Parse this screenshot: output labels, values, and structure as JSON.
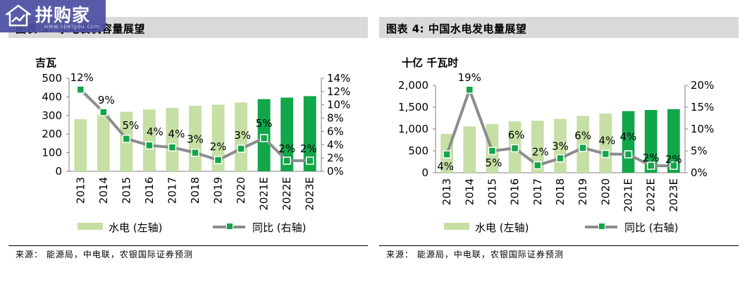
{
  "left": {
    "title": "图表 3: 水电装机容量展望",
    "unit": "吉瓦",
    "legend_bar": "水电 (左轴)",
    "legend_line": "同比 (右轴)",
    "source": "来源：  能源局，中电联，农银国际证券预测"
  },
  "right": {
    "title": "图表 4: 中国水电发电量展望",
    "unit": "十亿 千瓦时",
    "legend_bar": "水电 (左轴)",
    "legend_line": "同比 (右轴)",
    "source": "来源：  能源局，中电联，农银国际证券预测"
  },
  "watermark": {
    "text": "拼购家",
    "sub": "www.spelgou.com"
  },
  "colors": {
    "bar_actual": "#c6dfa5",
    "bar_forecast": "#12a64a",
    "line": "#8c8c8c",
    "marker": "#12a64a"
  },
  "chart_data": [
    {
      "type": "bar",
      "categories": [
        "2013",
        "2014",
        "2015",
        "2016",
        "2017",
        "2018",
        "2019",
        "2020",
        "2021E",
        "2022E",
        "2023E"
      ],
      "series": [
        {
          "name": "水电 (左轴)",
          "axis": "left",
          "values": [
            280,
            305,
            320,
            332,
            341,
            352,
            358,
            370,
            388,
            396,
            404
          ]
        },
        {
          "name": "同比 (右轴)",
          "axis": "right",
          "type": "line",
          "values": [
            12.3,
            8.9,
            4.9,
            3.9,
            3.6,
            2.8,
            1.7,
            3.4,
            5.0,
            1.6,
            1.6
          ],
          "labels": [
            "12%",
            "9%",
            "5%",
            "4%",
            "4%",
            "3%",
            "2%",
            "3%",
            "5%",
            "2%",
            "2%"
          ]
        }
      ],
      "forecast_from_index": 8,
      "ylim_left": [
        0,
        500
      ],
      "yticks_left": [
        "0",
        "100",
        "200",
        "300",
        "400",
        "500"
      ],
      "ylim_right": [
        0,
        14
      ],
      "yticks_right": [
        "0%",
        "2%",
        "4%",
        "6%",
        "8%",
        "10%",
        "12%",
        "14%"
      ]
    },
    {
      "type": "bar",
      "categories": [
        "2013",
        "2014",
        "2015",
        "2016",
        "2017",
        "2018",
        "2019",
        "2020",
        "2021E",
        "2022E",
        "2023E"
      ],
      "series": [
        {
          "name": "水电 (左轴)",
          "axis": "left",
          "values": [
            890,
            1060,
            1112,
            1175,
            1190,
            1232,
            1300,
            1355,
            1410,
            1435,
            1455
          ]
        },
        {
          "name": "同比 (右轴)",
          "axis": "right",
          "type": "line",
          "values": [
            4.2,
            19.0,
            5.0,
            5.6,
            1.7,
            3.3,
            5.7,
            4.3,
            4.2,
            1.6,
            1.6
          ],
          "labels": [
            "4%",
            "19%",
            "5%",
            "6%",
            "2%",
            "3%",
            "6%",
            "4%",
            "4%",
            "2%",
            "2%"
          ]
        }
      ],
      "forecast_from_index": 8,
      "ylim_left": [
        0,
        2000
      ],
      "yticks_left": [
        "0",
        "500",
        "1,000",
        "1,500",
        "2,000"
      ],
      "ylim_right": [
        0,
        20
      ],
      "yticks_right": [
        "0%",
        "5%",
        "10%",
        "15%",
        "20%"
      ]
    }
  ]
}
